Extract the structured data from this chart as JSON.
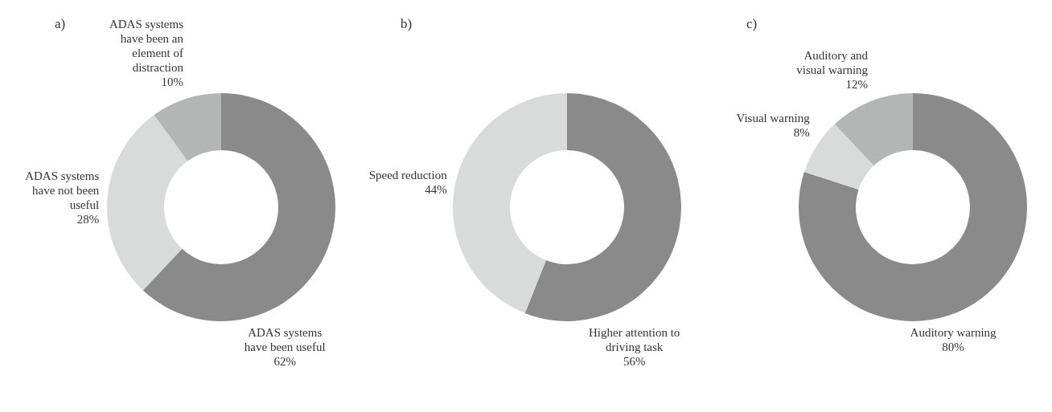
{
  "chart_data": [
    {
      "type": "donut",
      "title": "a)",
      "categories": [
        "ADAS systems have been useful",
        "ADAS systems have not been useful",
        "ADAS systems have been an element of distraction"
      ],
      "values": [
        62,
        28,
        10
      ],
      "colors": [
        "#8a8a8a",
        "#d9dada",
        "#b4b5b5"
      ],
      "value_labels": [
        "62%",
        "28%",
        "10%"
      ]
    },
    {
      "type": "donut",
      "title": "b)",
      "categories": [
        "Higher attention to driving task",
        "Speed reduction"
      ],
      "values": [
        56,
        44
      ],
      "colors": [
        "#8a8a8a",
        "#d9dada"
      ],
      "value_labels": [
        "56%",
        "44%"
      ]
    },
    {
      "type": "donut",
      "title": "c)",
      "categories": [
        "Auditory warning",
        "Visual warning",
        "Auditory and visual warning"
      ],
      "values": [
        80,
        8,
        12
      ],
      "colors": [
        "#8a8a8a",
        "#d9dada",
        "#b4b5b5"
      ],
      "value_labels": [
        "80%",
        "8%",
        "12%"
      ]
    }
  ]
}
